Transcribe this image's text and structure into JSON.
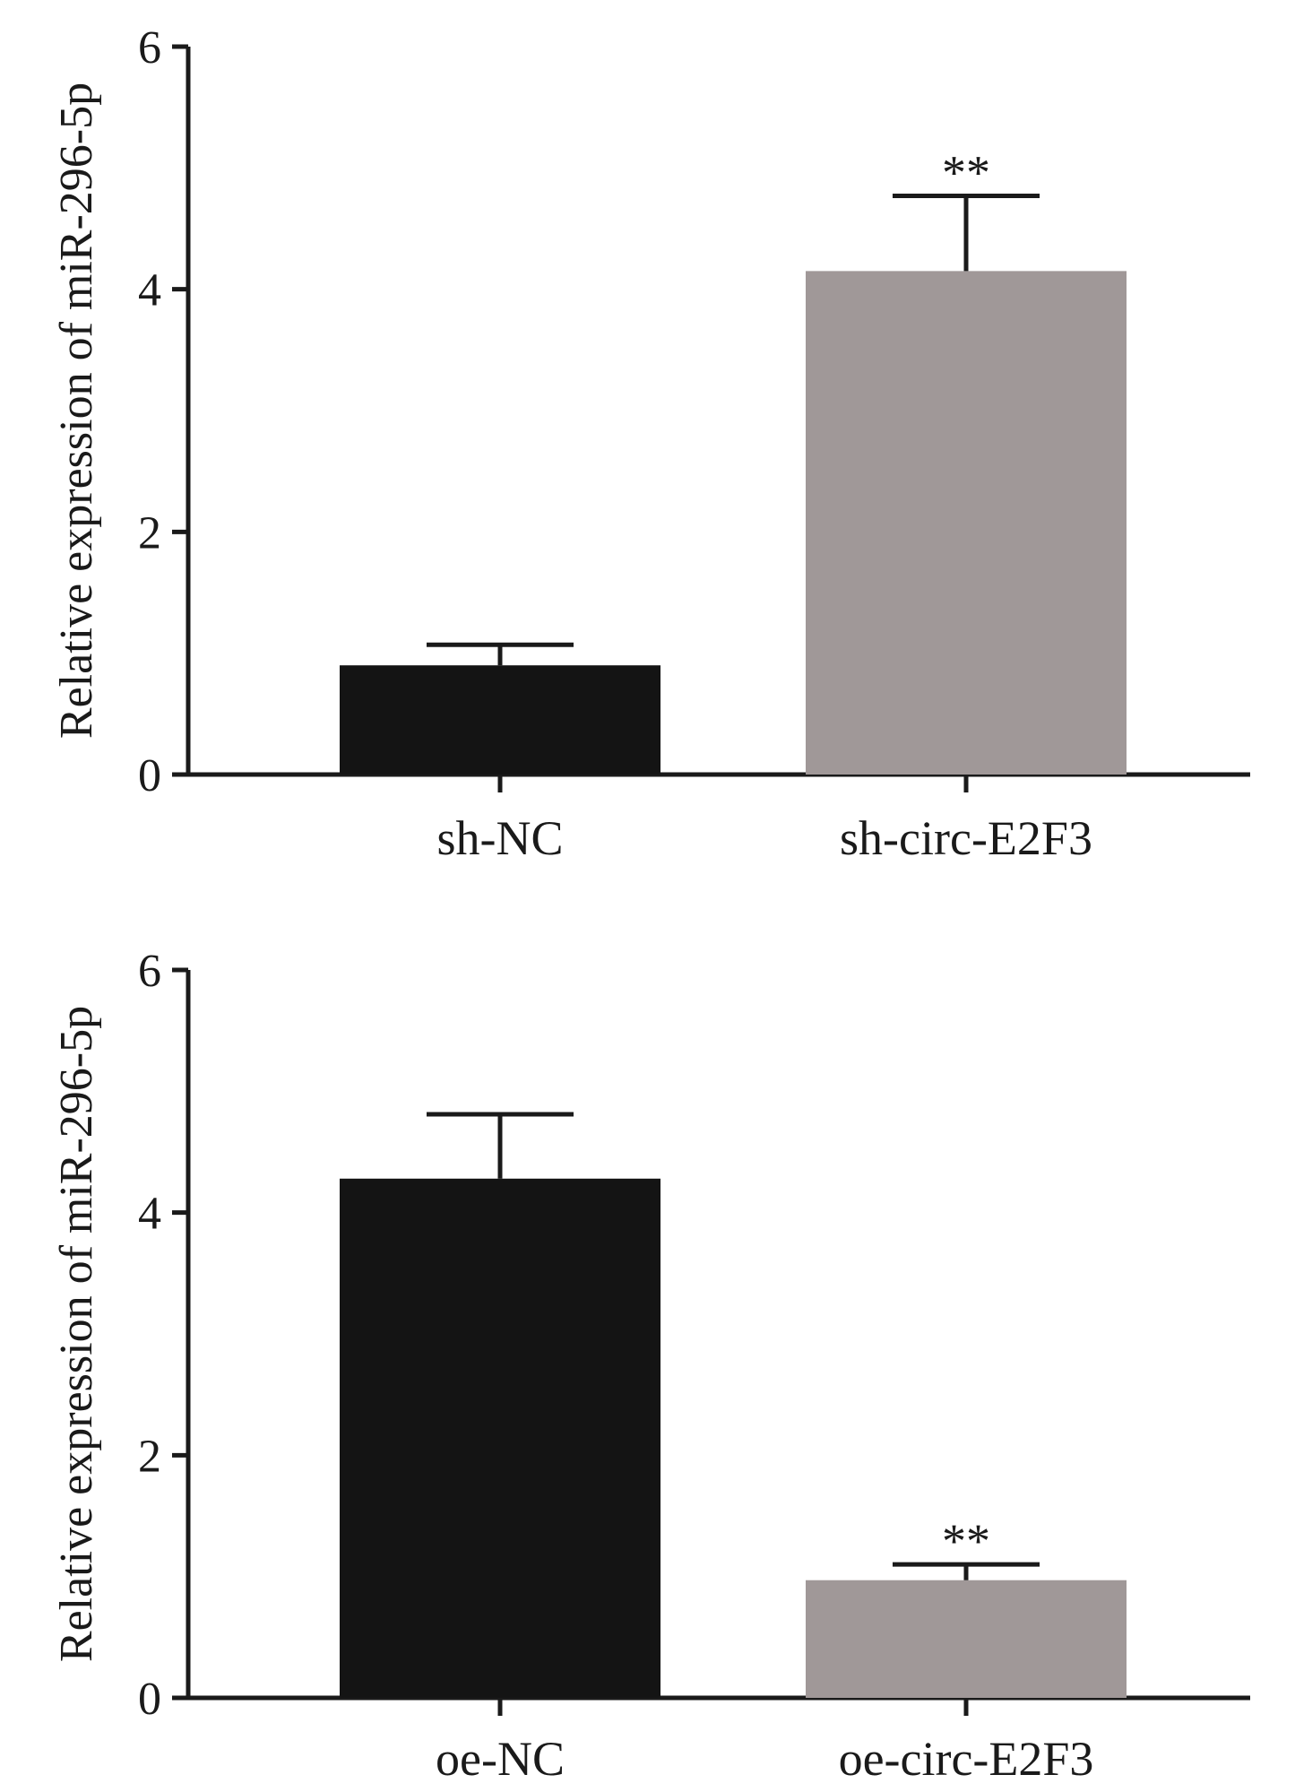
{
  "colors": {
    "axis": "#1a1a1a",
    "control_bar": "#141414",
    "treatment_bar": "#a09898"
  },
  "chart_data": [
    {
      "type": "bar",
      "title": "",
      "xlabel": "",
      "ylabel": "Relative expression of miR-296-5p",
      "ylim": [
        0,
        6
      ],
      "yticks": [
        "0",
        "2",
        "4",
        "6"
      ],
      "categories": [
        "sh-NC",
        "sh-circ-E2F3"
      ],
      "values": [
        0.9,
        4.15
      ],
      "error_upper": [
        0.17,
        0.62
      ],
      "significance": [
        "",
        "**"
      ],
      "bar_colors": [
        "#141414",
        "#a09898"
      ],
      "grid": false
    },
    {
      "type": "bar",
      "title": "",
      "xlabel": "",
      "ylabel": "Relative expression of miR-296-5p",
      "ylim": [
        0,
        6
      ],
      "yticks": [
        "0",
        "2",
        "4",
        "6"
      ],
      "categories": [
        "oe-NC",
        "oe-circ-E2F3"
      ],
      "values": [
        4.28,
        0.97
      ],
      "error_upper": [
        0.53,
        0.13
      ],
      "significance": [
        "",
        "**"
      ],
      "bar_colors": [
        "#141414",
        "#a09898"
      ],
      "grid": false
    }
  ]
}
